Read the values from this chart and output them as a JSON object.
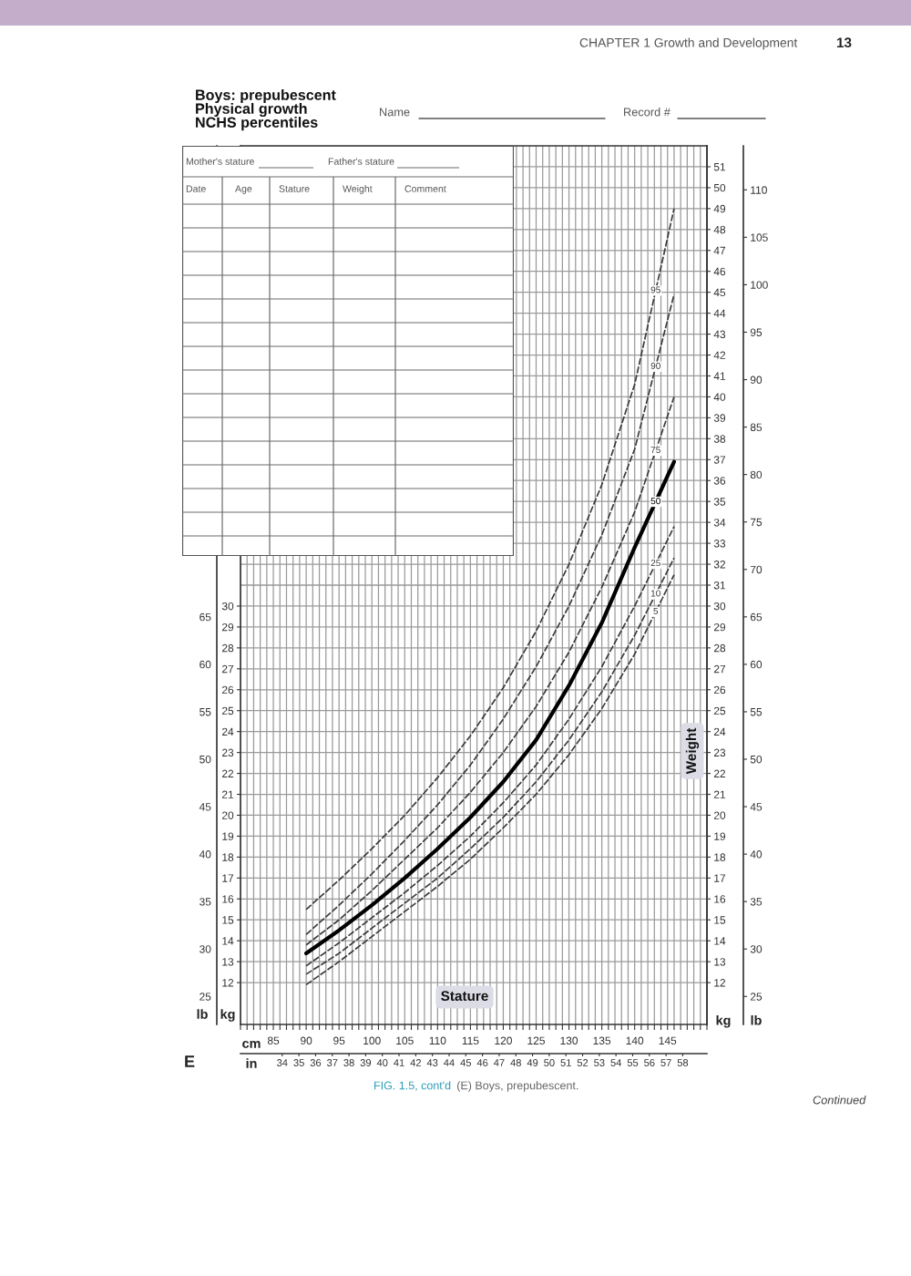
{
  "chart_data": {
    "type": "line",
    "title": "Boys: prepubescent\nPhysical growth\nNCHS percentiles",
    "xlabel": "cm",
    "x2label": "in",
    "ylabel": "kg",
    "y2label": "kg",
    "y3label": "lb",
    "annotations": [
      "CHAPTER 1 Growth and Development",
      "13",
      "Name",
      "Record #",
      "Mother's stature",
      "Father's stature",
      "Date",
      "Age",
      "Stature",
      "Weight",
      "Comment",
      "Stature",
      "Weight",
      "lb",
      "25",
      "30",
      "35",
      "40",
      "45",
      "50",
      "55",
      "60",
      "65",
      "E",
      "FIG. 1.5, cont'd",
      "(E) Boys, prepubescent.",
      "Continued"
    ],
    "x": [
      90,
      95,
      100,
      105,
      110,
      115,
      120,
      125,
      130,
      135,
      140,
      146
    ],
    "line_style": "dashed",
    "series": [
      {
        "name": "95",
        "color": "#3a3a3a",
        "values": [
          15.5,
          16.9,
          18.4,
          20.0,
          21.8,
          23.8,
          26.1,
          28.8,
          32.0,
          35.8,
          40.6,
          49.0
        ]
      },
      {
        "name": "90",
        "color": "#3a3a3a",
        "values": [
          14.3,
          15.7,
          17.2,
          18.8,
          20.5,
          22.4,
          24.6,
          27.1,
          30.0,
          33.4,
          37.5,
          44.9
        ]
      },
      {
        "name": "75",
        "color": "#3a3a3a",
        "values": [
          13.8,
          15.0,
          16.4,
          17.9,
          19.4,
          21.1,
          23.0,
          25.2,
          27.8,
          30.9,
          34.5,
          40.0
        ]
      },
      {
        "name": "50",
        "color": "#000000",
        "line_style": "solid",
        "values": [
          13.4,
          14.5,
          15.7,
          17.0,
          18.4,
          19.9,
          21.6,
          23.6,
          26.2,
          29.2,
          32.8,
          36.9
        ]
      },
      {
        "name": "25",
        "color": "#3a3a3a",
        "values": [
          12.8,
          13.9,
          15.1,
          16.3,
          17.6,
          19.0,
          20.6,
          22.4,
          24.6,
          27.1,
          30.0,
          33.8
        ]
      },
      {
        "name": "10",
        "color": "#3a3a3a",
        "values": [
          12.4,
          13.4,
          14.6,
          15.8,
          17.0,
          18.4,
          19.9,
          21.6,
          23.6,
          25.9,
          28.6,
          32.3
        ]
      },
      {
        "name": "5",
        "color": "#3a3a3a",
        "values": [
          11.9,
          13.0,
          14.2,
          15.4,
          16.6,
          17.9,
          19.4,
          21.0,
          22.9,
          25.1,
          27.7,
          31.5
        ]
      }
    ],
    "xlim": [
      80,
      151
    ],
    "xticks": [
      {
        "value": 80,
        "label": null
      },
      {
        "value": 81,
        "label": null
      },
      {
        "value": 82,
        "label": null
      },
      {
        "value": 83,
        "label": null
      },
      {
        "value": 84,
        "label": null
      },
      85,
      {
        "value": 86,
        "label": null
      },
      {
        "value": 87,
        "label": null
      },
      {
        "value": 88,
        "label": null
      },
      {
        "value": 89,
        "label": null
      },
      90,
      {
        "value": 91,
        "label": null
      },
      {
        "value": 92,
        "label": null
      },
      {
        "value": 93,
        "label": null
      },
      {
        "value": 94,
        "label": null
      },
      95,
      {
        "value": 96,
        "label": null
      },
      {
        "value": 97,
        "label": null
      },
      {
        "value": 98,
        "label": null
      },
      {
        "value": 99,
        "label": null
      },
      100,
      {
        "value": 101,
        "label": null
      },
      {
        "value": 102,
        "label": null
      },
      {
        "value": 103,
        "label": null
      },
      {
        "value": 104,
        "label": null
      },
      105,
      {
        "value": 106,
        "label": null
      },
      {
        "value": 107,
        "label": null
      },
      {
        "value": 108,
        "label": null
      },
      {
        "value": 109,
        "label": null
      },
      110,
      {
        "value": 111,
        "label": null
      },
      {
        "value": 112,
        "label": null
      },
      {
        "value": 113,
        "label": null
      },
      {
        "value": 114,
        "label": null
      },
      115,
      {
        "value": 116,
        "label": null
      },
      {
        "value": 117,
        "label": null
      },
      {
        "value": 118,
        "label": null
      },
      {
        "value": 119,
        "label": null
      },
      120,
      {
        "value": 121,
        "label": null
      },
      {
        "value": 122,
        "label": null
      },
      {
        "value": 123,
        "label": null
      },
      {
        "value": 124,
        "label": null
      },
      125,
      {
        "value": 126,
        "label": null
      },
      {
        "value": 127,
        "label": null
      },
      {
        "value": 128,
        "label": null
      },
      {
        "value": 129,
        "label": null
      },
      130,
      {
        "value": 131,
        "label": null
      },
      {
        "value": 132,
        "label": null
      },
      {
        "value": 133,
        "label": null
      },
      {
        "value": 134,
        "label": null
      },
      135,
      {
        "value": 136,
        "label": null
      },
      {
        "value": 137,
        "label": null
      },
      {
        "value": 138,
        "label": null
      },
      {
        "value": 139,
        "label": null
      },
      140,
      {
        "value": 141,
        "label": null
      },
      {
        "value": 142,
        "label": null
      },
      {
        "value": 143,
        "label": null
      },
      {
        "value": 144,
        "label": null
      },
      145,
      {
        "value": 146,
        "label": null
      },
      {
        "value": 147,
        "label": null
      },
      {
        "value": 148,
        "label": null
      },
      {
        "value": 149,
        "label": null
      },
      {
        "value": 150,
        "label": null
      },
      {
        "value": 151,
        "label": null
      }
    ],
    "x2lim": [
      31.5,
      59.45
    ],
    "x2ticks": [
      34,
      35,
      36,
      37,
      38,
      39,
      40,
      41,
      42,
      43,
      44,
      45,
      46,
      47,
      48,
      49,
      50,
      51,
      52,
      53,
      54,
      55,
      56,
      57,
      58
    ],
    "ylim": [
      10,
      52
    ],
    "yticks": [
      12,
      13,
      14,
      15,
      16,
      17,
      18,
      19,
      20,
      21,
      22,
      23,
      24,
      25,
      26,
      27,
      28,
      29,
      30
    ],
    "y2lim": [
      10,
      52
    ],
    "y2ticks": [
      12,
      13,
      14,
      15,
      16,
      17,
      18,
      19,
      20,
      21,
      22,
      23,
      24,
      25,
      26,
      27,
      28,
      29,
      30,
      31,
      32,
      33,
      34,
      35,
      36,
      37,
      38,
      39,
      40,
      41,
      42,
      43,
      44,
      45,
      46,
      47,
      48,
      49,
      50,
      51
    ],
    "y3lim": [
      22.05,
      114.64
    ],
    "y3ticks": [
      25,
      30,
      35,
      40,
      45,
      50,
      55,
      60,
      65,
      70,
      75,
      80,
      85,
      90,
      95,
      100,
      105,
      110
    ],
    "grid": true
  }
}
